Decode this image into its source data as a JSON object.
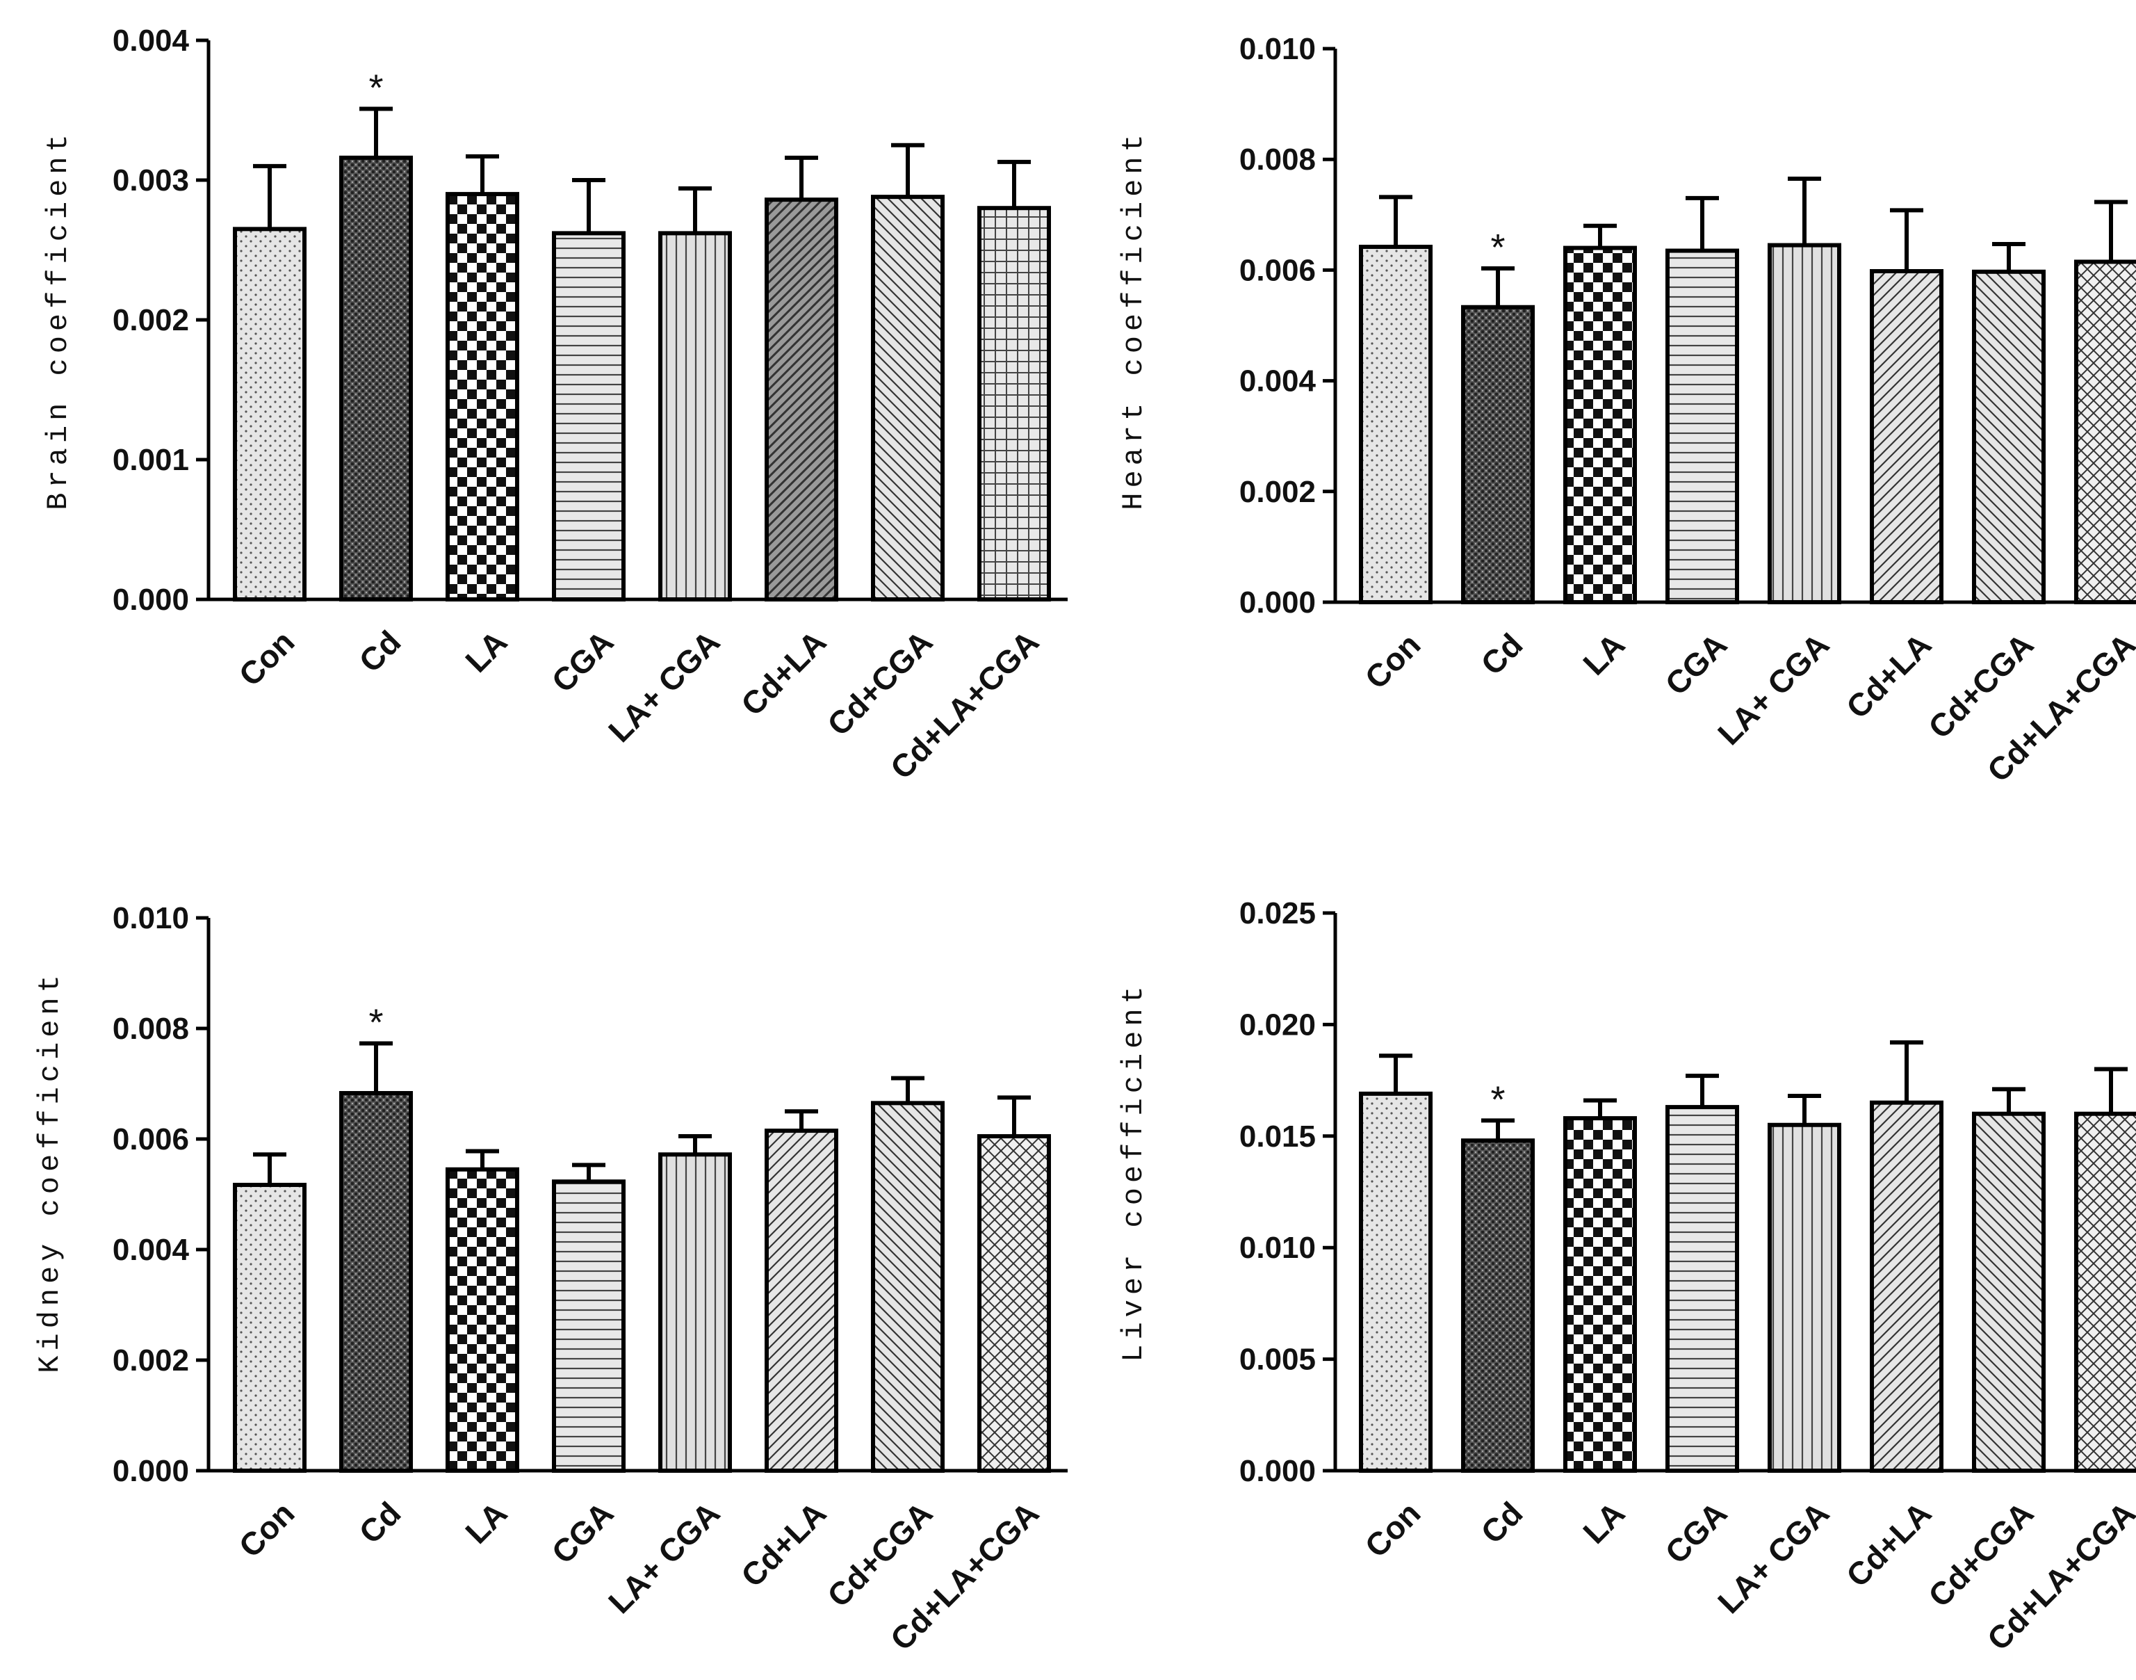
{
  "chart_data": [
    {
      "type": "bar",
      "ylabel": "Brain coefficient",
      "ylim": [
        0,
        0.004
      ],
      "yticks": [
        "0.000",
        "0.001",
        "0.002",
        "0.003",
        "0.004"
      ],
      "categories": [
        "Con",
        "Cd",
        "LA",
        "CGA",
        "LA+ CGA",
        "Cd+LA",
        "Cd+CGA",
        "Cd+LA+CGA"
      ],
      "values": [
        0.00265,
        0.00316,
        0.0029,
        0.00262,
        0.00262,
        0.00286,
        0.00288,
        0.0028
      ],
      "errors": [
        0.00045,
        0.00035,
        0.00027,
        0.00038,
        0.00032,
        0.0003,
        0.00037,
        0.00033
      ],
      "significance": [
        "",
        "*",
        "",
        "",
        "",
        "",
        "",
        ""
      ]
    },
    {
      "type": "bar",
      "ylabel": "Heart coefficient",
      "ylim": [
        0,
        0.01
      ],
      "yticks": [
        "0.000",
        "0.002",
        "0.004",
        "0.006",
        "0.008",
        "0.010"
      ],
      "categories": [
        "Con",
        "Cd",
        "LA",
        "CGA",
        "LA+ CGA",
        "Cd+LA",
        "Cd+CGA",
        "Cd+LA+CGA"
      ],
      "values": [
        0.00642,
        0.00533,
        0.0064,
        0.00635,
        0.00645,
        0.00598,
        0.00597,
        0.00615
      ],
      "errors": [
        0.0009,
        0.0007,
        0.0004,
        0.00095,
        0.0012,
        0.0011,
        0.0005,
        0.00108
      ],
      "significance": [
        "",
        "*",
        "",
        "",
        "",
        "",
        "",
        ""
      ]
    },
    {
      "type": "bar",
      "ylabel": "Kidney coefficient",
      "ylim": [
        0,
        0.01
      ],
      "yticks": [
        "0.000",
        "0.002",
        "0.004",
        "0.006",
        "0.008",
        "0.010"
      ],
      "categories": [
        "Con",
        "Cd",
        "LA",
        "CGA",
        "LA+ CGA",
        "Cd+LA",
        "Cd+CGA",
        "Cd+LA+CGA"
      ],
      "values": [
        0.00517,
        0.00683,
        0.00545,
        0.00523,
        0.00572,
        0.00615,
        0.00665,
        0.00605
      ],
      "errors": [
        0.00055,
        0.0009,
        0.00033,
        0.0003,
        0.00033,
        0.00035,
        0.00045,
        0.0007
      ],
      "significance": [
        "",
        "*",
        "",
        "",
        "",
        "",
        "",
        ""
      ]
    },
    {
      "type": "bar",
      "ylabel": "Liver coefficient",
      "ylim": [
        0,
        0.025
      ],
      "yticks": [
        "0.000",
        "0.005",
        "0.010",
        "0.015",
        "0.020",
        "0.025"
      ],
      "categories": [
        "Con",
        "Cd",
        "LA",
        "CGA",
        "LA+ CGA",
        "Cd+LA",
        "Cd+CGA",
        "Cd+LA+CGA"
      ],
      "values": [
        0.0169,
        0.0148,
        0.0158,
        0.0163,
        0.0155,
        0.0165,
        0.016,
        0.016
      ],
      "errors": [
        0.0017,
        0.0009,
        0.0008,
        0.0014,
        0.0013,
        0.0027,
        0.0011,
        0.002
      ],
      "significance": [
        "",
        "*",
        "",
        "",
        "",
        "",
        "",
        ""
      ]
    }
  ]
}
